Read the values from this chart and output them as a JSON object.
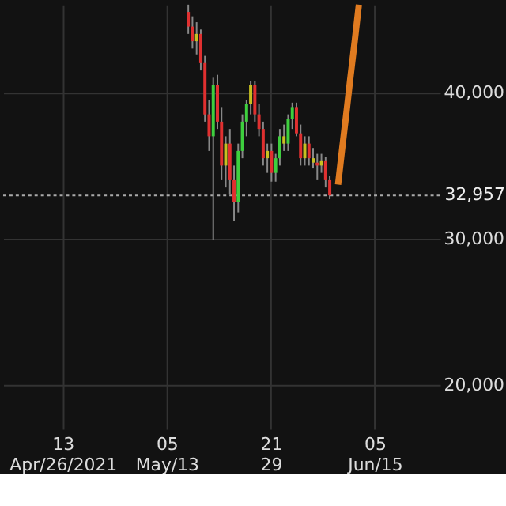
{
  "chart_data": {
    "type": "candlestick",
    "categories": [
      null,
      null,
      null,
      null,
      null,
      null,
      null,
      null,
      null,
      null,
      null,
      null,
      null,
      null,
      "13\nApr/26/2021",
      null,
      null,
      null,
      null,
      null,
      null,
      null,
      null,
      null,
      null,
      null,
      null,
      null,
      null,
      null,
      null,
      null,
      null,
      null,
      null,
      null,
      null,
      null,
      null,
      "05\nMay/13",
      null,
      null,
      null,
      null,
      null,
      null,
      null,
      null,
      null,
      null,
      null,
      null,
      null,
      null,
      null,
      null,
      null,
      null,
      null,
      null,
      null,
      null,
      null,
      null,
      "21\n29",
      null,
      null,
      null,
      null,
      null,
      null,
      null,
      null,
      null,
      null,
      null,
      null,
      null,
      null,
      null,
      null,
      null,
      null,
      null,
      null,
      null,
      null,
      null,
      null,
      "05\nJun/15",
      null,
      null,
      null,
      null,
      null,
      null,
      null,
      null,
      null,
      null,
      null,
      null,
      null,
      null,
      null
    ],
    "ohlc": [
      null,
      null,
      null,
      null,
      null,
      null,
      null,
      null,
      null,
      null,
      null,
      null,
      null,
      null,
      null,
      null,
      null,
      null,
      null,
      null,
      null,
      null,
      null,
      null,
      null,
      null,
      null,
      null,
      null,
      null,
      null,
      null,
      null,
      null,
      null,
      null,
      null,
      null,
      null,
      null,
      null,
      null,
      null,
      null,
      [
        45500,
        46000,
        44000,
        44500
      ],
      [
        44500,
        45200,
        43000,
        43500
      ],
      [
        43500,
        44800,
        42600,
        44000
      ],
      [
        44000,
        44300,
        41500,
        42000
      ],
      [
        42000,
        42500,
        38000,
        38500
      ],
      [
        38500,
        39500,
        36000,
        37000
      ],
      [
        37000,
        41000,
        29900,
        40500
      ],
      [
        40500,
        41200,
        37500,
        38000
      ],
      [
        38000,
        39000,
        34000,
        35000
      ],
      [
        35000,
        37000,
        33500,
        36500
      ],
      [
        36500,
        37500,
        33000,
        34000
      ],
      [
        34000,
        35000,
        31200,
        32500
      ],
      [
        32500,
        36500,
        31800,
        36000
      ],
      [
        36000,
        38500,
        35500,
        38000
      ],
      [
        38000,
        39500,
        37000,
        39200
      ],
      [
        39200,
        40800,
        38500,
        40500
      ],
      [
        40500,
        40800,
        38000,
        38500
      ],
      [
        38500,
        39200,
        37000,
        37500
      ],
      [
        37500,
        38000,
        35000,
        35500
      ],
      [
        35500,
        36500,
        34500,
        36000
      ],
      [
        36000,
        36500,
        33900,
        34500
      ],
      [
        34500,
        35800,
        33900,
        35500
      ],
      [
        35500,
        37500,
        35000,
        37000
      ],
      [
        37000,
        37800,
        36000,
        36500
      ],
      [
        36500,
        38500,
        36000,
        38200
      ],
      [
        38200,
        39300,
        37500,
        39000
      ],
      [
        39000,
        39300,
        37000,
        37200
      ],
      [
        37200,
        37800,
        35000,
        35500
      ],
      [
        35500,
        37000,
        35000,
        36500
      ],
      [
        36500,
        37000,
        35000,
        35500
      ],
      [
        35500,
        36200,
        34800,
        35200
      ],
      [
        35200,
        35800,
        34000,
        35000
      ],
      [
        35000,
        35800,
        34500,
        35300
      ],
      [
        35300,
        35600,
        33500,
        34000
      ],
      [
        34000,
        34300,
        32700,
        32957
      ],
      null,
      null,
      null,
      null,
      null,
      null,
      null,
      null,
      null,
      null,
      null,
      null,
      null,
      null,
      null,
      null,
      null,
      null,
      null,
      null,
      null,
      null,
      null,
      null,
      null,
      null
    ],
    "colors": [
      null,
      null,
      null,
      null,
      null,
      null,
      null,
      null,
      null,
      null,
      null,
      null,
      null,
      null,
      null,
      null,
      null,
      null,
      null,
      null,
      null,
      null,
      null,
      null,
      null,
      null,
      null,
      null,
      null,
      null,
      null,
      null,
      null,
      null,
      null,
      null,
      null,
      null,
      null,
      null,
      null,
      null,
      null,
      null,
      "#e03030",
      "#e03030",
      "#c8c020",
      "#e03030",
      "#e03030",
      "#e03030",
      "#3ecf3e",
      "#e03030",
      "#e03030",
      "#c8c020",
      "#e03030",
      "#e03030",
      "#3ecf3e",
      "#3ecf3e",
      "#3ecf3e",
      "#c8c020",
      "#e03030",
      "#e03030",
      "#e03030",
      "#c8c020",
      "#e03030",
      "#3ecf3e",
      "#3ecf3e",
      "#c8c020",
      "#3ecf3e",
      "#3ecf3e",
      "#e03030",
      "#e03030",
      "#c8c020",
      "#e03030",
      "#c8c020",
      "#e03030",
      "#c8c020",
      "#e03030",
      "#e03030",
      null,
      null,
      null,
      null,
      null,
      null,
      null,
      null,
      null,
      null,
      null,
      null,
      null,
      null,
      null,
      null,
      null,
      null,
      null,
      null,
      null,
      null,
      null,
      null,
      null,
      null
    ],
    "series": [
      {
        "type": "line",
        "color": "#e07b20",
        "values": [
          null,
          null,
          null,
          null,
          null,
          null,
          null,
          null,
          null,
          null,
          null,
          null,
          null,
          null,
          null,
          null,
          null,
          null,
          null,
          null,
          null,
          null,
          null,
          null,
          null,
          null,
          null,
          null,
          null,
          null,
          null,
          null,
          null,
          null,
          null,
          null,
          null,
          null,
          null,
          null,
          null,
          null,
          null,
          null,
          null,
          null,
          null,
          null,
          null,
          null,
          null,
          null,
          null,
          null,
          null,
          null,
          null,
          null,
          null,
          null,
          null,
          null,
          null,
          null,
          null,
          null,
          null,
          null,
          null,
          null,
          null,
          null,
          null,
          null,
          null,
          null,
          null,
          null,
          null,
          null,
          33700,
          36200,
          38600,
          41100,
          43500,
          46000,
          null,
          null,
          null,
          null,
          null,
          null,
          null,
          null,
          null,
          null,
          null,
          null,
          null,
          null,
          null,
          null,
          null,
          null,
          null
        ]
      }
    ],
    "ylim": [
      17000,
      46000
    ],
    "yticks": [
      {
        "value": 20000,
        "label": "20,000"
      },
      {
        "value": 30000,
        "label": "30,000"
      },
      {
        "value": 40000,
        "label": "40,000"
      }
    ],
    "grid": true,
    "ref_lines": [
      {
        "axis": "y",
        "value": 32957,
        "label": "32,957",
        "line_style": "dotted",
        "color": "#aaaaaa"
      }
    ]
  }
}
